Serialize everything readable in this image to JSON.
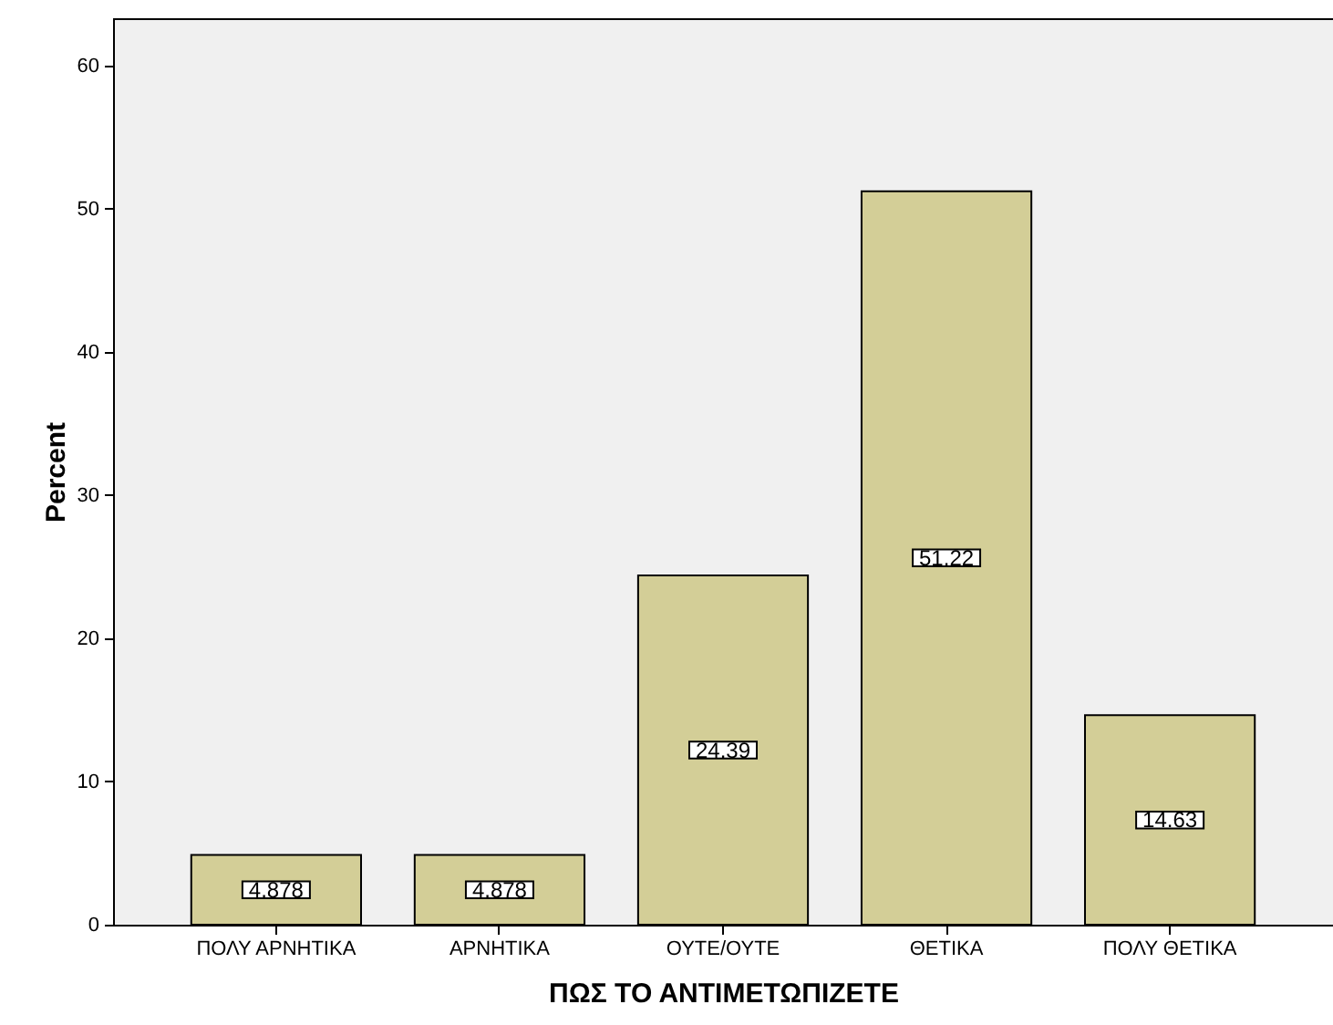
{
  "chart_data": {
    "type": "bar",
    "xlabel": "ΠΩΣ ΤΟ ΑΝΤΙΜΕΤΩΠΙΖΕΤΕ",
    "ylabel": "Percent",
    "categories": [
      "ΠΟΛΥ ΑΡΝΗΤΙΚΑ",
      "ΑΡΝΗΤΙΚΑ",
      "ΟΥΤΕ/ΟΥΤΕ",
      "ΘΕΤΙΚΑ",
      "ΠΟΛΥ ΘΕΤΙΚΑ"
    ],
    "values": [
      4.878,
      4.878,
      24.39,
      51.22,
      14.63
    ],
    "color": "#d3ce97",
    "ylim": [
      0,
      63.3
    ],
    "yticks": [
      0,
      10,
      20,
      30,
      40,
      50,
      60
    ],
    "grid": false,
    "data_labels": true
  }
}
